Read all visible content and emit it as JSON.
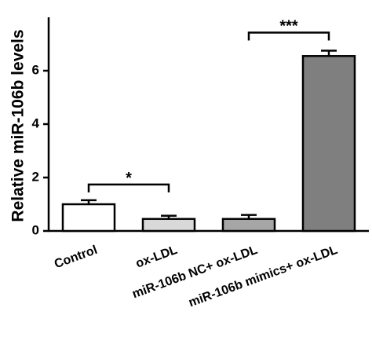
{
  "chart_data": {
    "type": "bar",
    "y_label": "Relative miR-106b levels",
    "categories": [
      "Control",
      "ox-LDL",
      "miR-106b NC+ ox-LDL",
      "miR-106b mimics+ ox-LDL"
    ],
    "values": [
      1.0,
      0.45,
      0.45,
      6.55
    ],
    "errors": [
      0.15,
      0.12,
      0.15,
      0.2
    ],
    "colors": [
      "#ffffff",
      "#d9d9d9",
      "#a6a6a6",
      "#7f7f7f"
    ],
    "ylim": [
      0,
      8
    ],
    "yticks": [
      0,
      2,
      4,
      6
    ],
    "annotations": [
      {
        "text": "*",
        "between": [
          0,
          1
        ]
      },
      {
        "text": "***",
        "between": [
          2,
          3
        ]
      }
    ]
  }
}
